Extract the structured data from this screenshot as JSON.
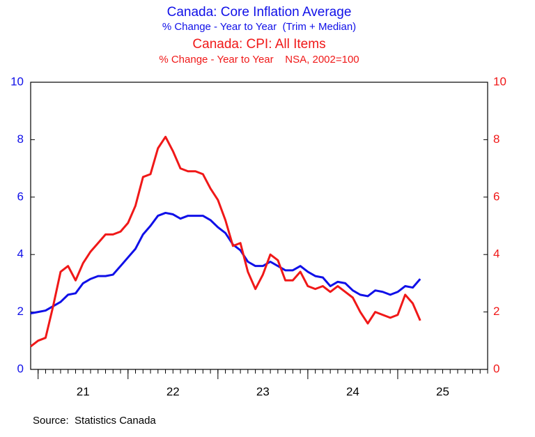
{
  "chart_data": {
    "type": "line",
    "title": "Canada: Core Inflation Average",
    "subtitle": "% Change - Year to Year  (Trim + Median)",
    "title2": "Canada: CPI: All Items",
    "subtitle2": "% Change - Year to Year    NSA, 2002=100",
    "source": "Source:  Statistics Canada",
    "x": [
      2020.917,
      2021.0,
      2021.083,
      2021.167,
      2021.25,
      2021.333,
      2021.417,
      2021.5,
      2021.583,
      2021.667,
      2021.75,
      2021.833,
      2021.917,
      2022.0,
      2022.083,
      2022.167,
      2022.25,
      2022.333,
      2022.417,
      2022.5,
      2022.583,
      2022.667,
      2022.75,
      2022.833,
      2022.917,
      2023.0,
      2023.083,
      2023.167,
      2023.25,
      2023.333,
      2023.417,
      2023.5,
      2023.583,
      2023.667,
      2023.75,
      2023.833,
      2023.917,
      2024.0,
      2024.083,
      2024.167,
      2024.25,
      2024.333,
      2024.417,
      2024.5,
      2024.583,
      2024.667,
      2024.75,
      2024.833,
      2024.917,
      2025.0,
      2025.083,
      2025.167,
      2025.25
    ],
    "series": [
      {
        "name": "Canada: Core Inflation Average",
        "color": "#1010e8",
        "axis": "y",
        "values": [
          1.95,
          2.0,
          2.05,
          2.2,
          2.35,
          2.6,
          2.65,
          3.0,
          3.15,
          3.25,
          3.25,
          3.3,
          3.6,
          3.9,
          4.2,
          4.7,
          5.0,
          5.35,
          5.45,
          5.4,
          5.25,
          5.35,
          5.35,
          5.35,
          5.2,
          4.95,
          4.75,
          4.35,
          4.15,
          3.75,
          3.6,
          3.6,
          3.75,
          3.6,
          3.45,
          3.45,
          3.6,
          3.4,
          3.25,
          3.2,
          2.9,
          3.05,
          3.0,
          2.75,
          2.6,
          2.55,
          2.75,
          2.7,
          2.6,
          2.7,
          2.9,
          2.85,
          3.15
        ]
      },
      {
        "name": "Canada: CPI: All Items",
        "color": "#f01818",
        "axis": "y2",
        "values": [
          0.8,
          1.0,
          1.1,
          2.2,
          3.4,
          3.6,
          3.1,
          3.7,
          4.1,
          4.4,
          4.7,
          4.7,
          4.8,
          5.1,
          5.7,
          6.7,
          6.8,
          7.7,
          8.1,
          7.6,
          7.0,
          6.9,
          6.9,
          6.8,
          6.3,
          5.9,
          5.2,
          4.3,
          4.4,
          3.4,
          2.8,
          3.3,
          4.0,
          3.8,
          3.1,
          3.1,
          3.4,
          2.9,
          2.8,
          2.9,
          2.7,
          2.9,
          2.7,
          2.5,
          2.0,
          1.6,
          2.0,
          1.9,
          1.8,
          1.9,
          2.6,
          2.3,
          1.7
        ]
      }
    ],
    "xlim": [
      2020.917,
      2026.0
    ],
    "xticks": [
      {
        "value": 2021.5,
        "label": "21"
      },
      {
        "value": 2022.5,
        "label": "22"
      },
      {
        "value": 2023.5,
        "label": "23"
      },
      {
        "value": 2024.5,
        "label": "24"
      },
      {
        "value": 2025.5,
        "label": "25"
      }
    ],
    "year_ticks": [
      2021,
      2022,
      2023,
      2024,
      2025
    ],
    "minor_ticks_per_year": 12,
    "ylim": [
      0,
      10
    ],
    "yticks": [
      0,
      2,
      4,
      6,
      8,
      10
    ],
    "y2lim": [
      0,
      10
    ],
    "y2ticks": [
      0,
      2,
      4,
      6,
      8,
      10
    ],
    "y_color": "#1010e8",
    "y2_color": "#f01818",
    "grid": false
  }
}
